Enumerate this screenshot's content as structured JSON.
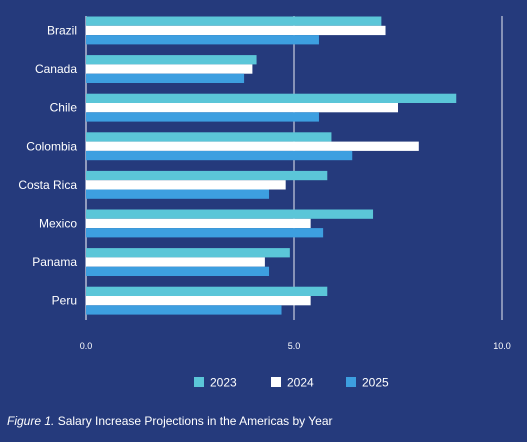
{
  "chart_data": {
    "type": "bar",
    "orientation": "horizontal",
    "categories": [
      "Brazil",
      "Canada",
      "Chile",
      "Colombia",
      "Costa Rica",
      "Mexico",
      "Panama",
      "Peru"
    ],
    "series": [
      {
        "name": "2023",
        "values": [
          7.1,
          4.1,
          8.9,
          5.9,
          5.8,
          6.9,
          4.9,
          5.8
        ]
      },
      {
        "name": "2024",
        "values": [
          7.2,
          4.0,
          7.5,
          8.0,
          4.8,
          5.4,
          4.3,
          5.4
        ]
      },
      {
        "name": "2025",
        "values": [
          5.6,
          3.8,
          5.6,
          6.4,
          4.4,
          5.7,
          4.4,
          4.7
        ]
      }
    ],
    "xlim": [
      0,
      10
    ],
    "xticks": [
      "0.0",
      "5.0",
      "10.0"
    ],
    "grid": true,
    "legend_position": "bottom"
  },
  "colors": {
    "background": "#253a7c",
    "series": [
      "#5bc6d8",
      "#ffffff",
      "#3d9fe0"
    ],
    "grid": "#ffffff"
  },
  "caption": {
    "prefix": "Figure 1.",
    "text": " Salary Increase Projections in the Americas by Year"
  }
}
